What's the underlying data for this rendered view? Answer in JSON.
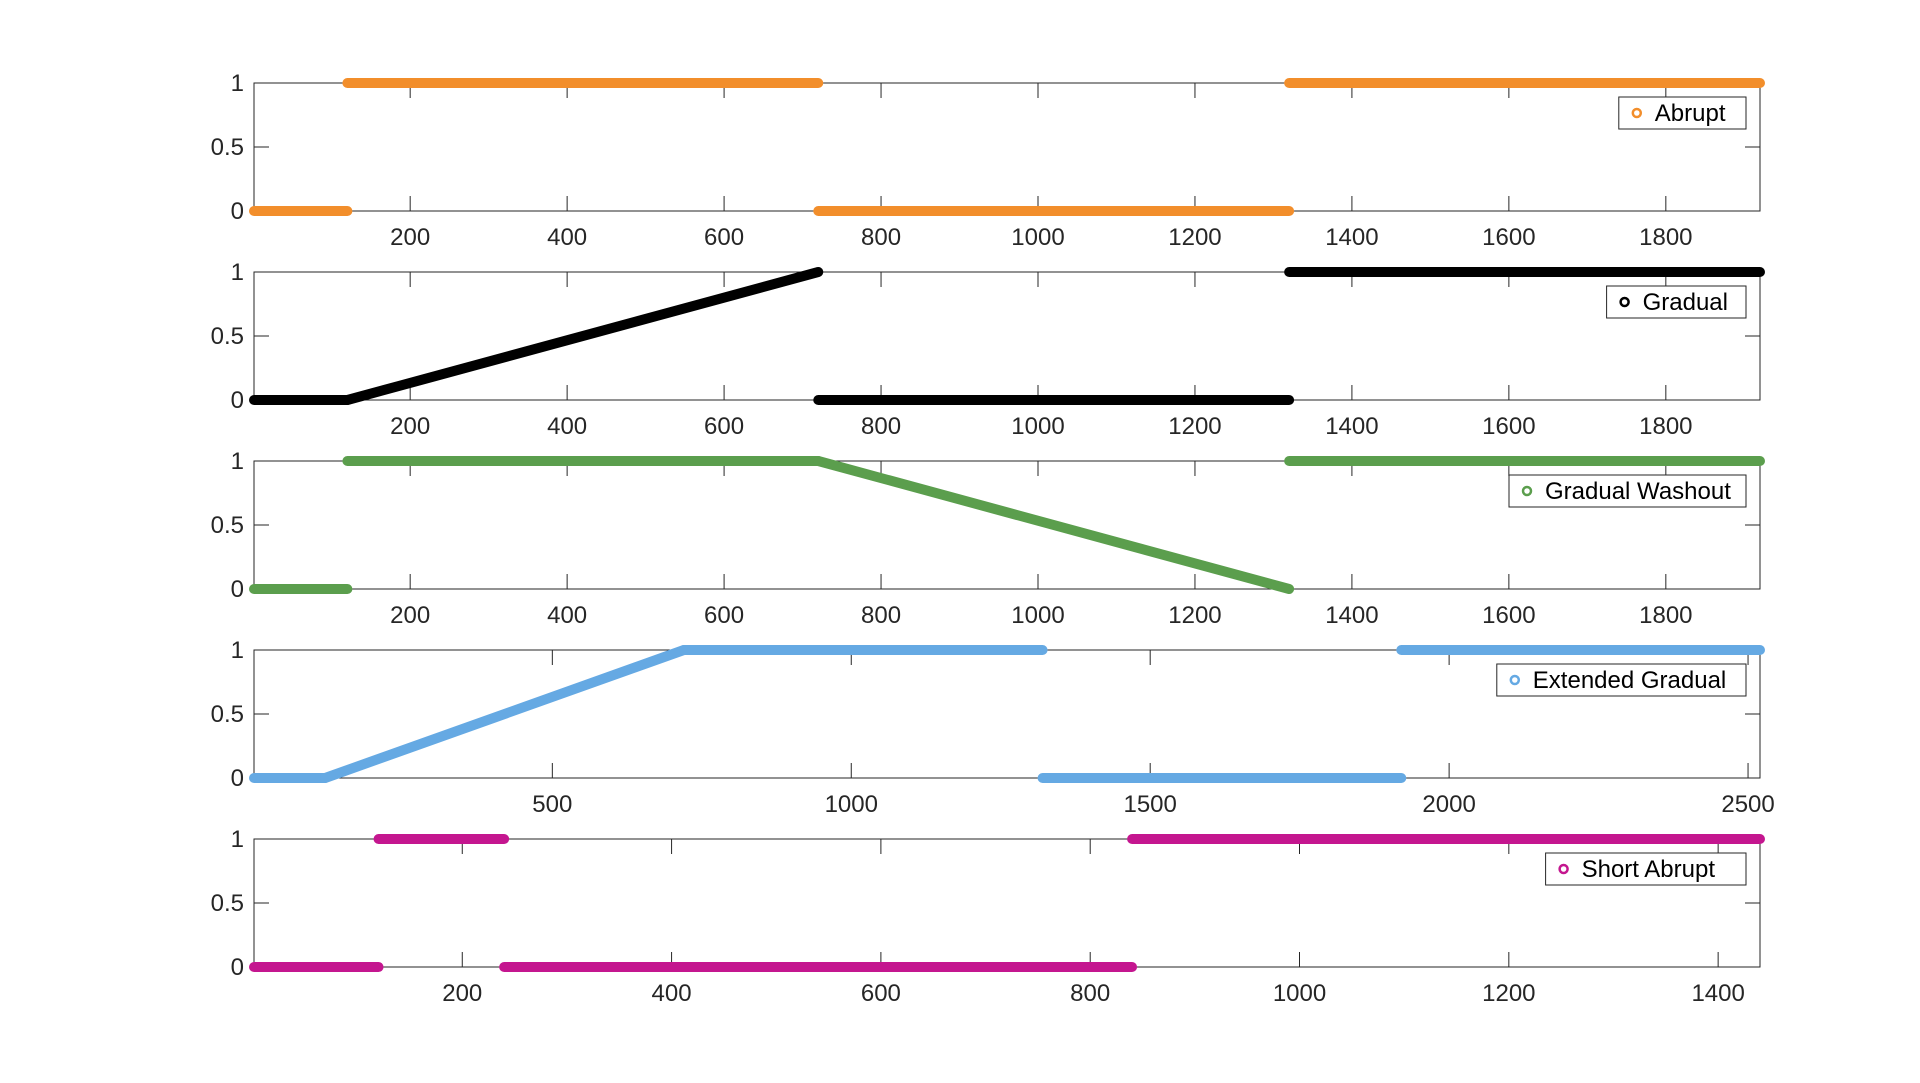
{
  "chart_data": [
    {
      "type": "scatter",
      "legend": "Abrupt",
      "legend_position": "top-right",
      "color": "#F28E2B",
      "xlim": [
        1,
        1920
      ],
      "ylim": [
        0,
        1
      ],
      "xticks": [
        200,
        400,
        600,
        800,
        1000,
        1200,
        1400,
        1600,
        1800
      ],
      "yticks": [
        0,
        0.5,
        1
      ],
      "ytick_labels": [
        "0",
        "0.5",
        "1"
      ],
      "grid": false,
      "segments": [
        {
          "x": [
            1,
            120
          ],
          "y": [
            0,
            0
          ]
        },
        {
          "x": [
            120,
            720
          ],
          "y": [
            1,
            1
          ]
        },
        {
          "x": [
            720,
            1320
          ],
          "y": [
            0,
            0
          ]
        },
        {
          "x": [
            1320,
            1920
          ],
          "y": [
            1,
            1
          ]
        }
      ]
    },
    {
      "type": "scatter",
      "legend": "Gradual",
      "legend_position": "top-right",
      "color": "#000000",
      "xlim": [
        1,
        1920
      ],
      "ylim": [
        0,
        1
      ],
      "xticks": [
        200,
        400,
        600,
        800,
        1000,
        1200,
        1400,
        1600,
        1800
      ],
      "yticks": [
        0,
        0.5,
        1
      ],
      "ytick_labels": [
        "0",
        "0.5",
        "1"
      ],
      "grid": false,
      "segments": [
        {
          "x": [
            1,
            120
          ],
          "y": [
            0,
            0
          ]
        },
        {
          "x": [
            120,
            720
          ],
          "y": [
            0,
            1
          ]
        },
        {
          "x": [
            720,
            1320
          ],
          "y": [
            0,
            0
          ]
        },
        {
          "x": [
            1320,
            1920
          ],
          "y": [
            1,
            1
          ]
        }
      ]
    },
    {
      "type": "scatter",
      "legend": "Gradual Washout",
      "legend_position": "top-right",
      "color": "#5B9E4D",
      "xlim": [
        1,
        1920
      ],
      "ylim": [
        0,
        1
      ],
      "xticks": [
        200,
        400,
        600,
        800,
        1000,
        1200,
        1400,
        1600,
        1800
      ],
      "yticks": [
        0,
        0.5,
        1
      ],
      "ytick_labels": [
        "0",
        "0.5",
        "1"
      ],
      "grid": false,
      "segments": [
        {
          "x": [
            1,
            120
          ],
          "y": [
            0,
            0
          ]
        },
        {
          "x": [
            120,
            720
          ],
          "y": [
            1,
            1
          ]
        },
        {
          "x": [
            720,
            1320
          ],
          "y": [
            1,
            0
          ]
        },
        {
          "x": [
            1320,
            1920
          ],
          "y": [
            1,
            1
          ]
        }
      ]
    },
    {
      "type": "scatter",
      "legend": "Extended Gradual",
      "legend_position": "top-right",
      "color": "#65A9E3",
      "xlim": [
        1,
        2520
      ],
      "ylim": [
        0,
        1
      ],
      "xticks": [
        500,
        1000,
        1500,
        2000,
        2500
      ],
      "yticks": [
        0,
        0.5,
        1
      ],
      "ytick_labels": [
        "0",
        "0.5",
        "1"
      ],
      "grid": false,
      "segments": [
        {
          "x": [
            1,
            120
          ],
          "y": [
            0,
            0
          ]
        },
        {
          "x": [
            120,
            720
          ],
          "y": [
            0,
            1
          ]
        },
        {
          "x": [
            720,
            1320
          ],
          "y": [
            1,
            1
          ]
        },
        {
          "x": [
            1320,
            1920
          ],
          "y": [
            0,
            0
          ]
        },
        {
          "x": [
            1920,
            2520
          ],
          "y": [
            1,
            1
          ]
        }
      ]
    },
    {
      "type": "scatter",
      "legend": "Short Abrupt",
      "legend_position": "top-right",
      "color": "#C4168F",
      "xlim": [
        1,
        1440
      ],
      "ylim": [
        0,
        1
      ],
      "xticks": [
        200,
        400,
        600,
        800,
        1000,
        1200,
        1400
      ],
      "yticks": [
        0,
        0.5,
        1
      ],
      "ytick_labels": [
        "0",
        "0.5",
        "1"
      ],
      "grid": false,
      "segments": [
        {
          "x": [
            1,
            120
          ],
          "y": [
            0,
            0
          ]
        },
        {
          "x": [
            120,
            240
          ],
          "y": [
            1,
            1
          ]
        },
        {
          "x": [
            240,
            840
          ],
          "y": [
            0,
            0
          ]
        },
        {
          "x": [
            840,
            1440
          ],
          "y": [
            1,
            1
          ]
        }
      ]
    }
  ]
}
